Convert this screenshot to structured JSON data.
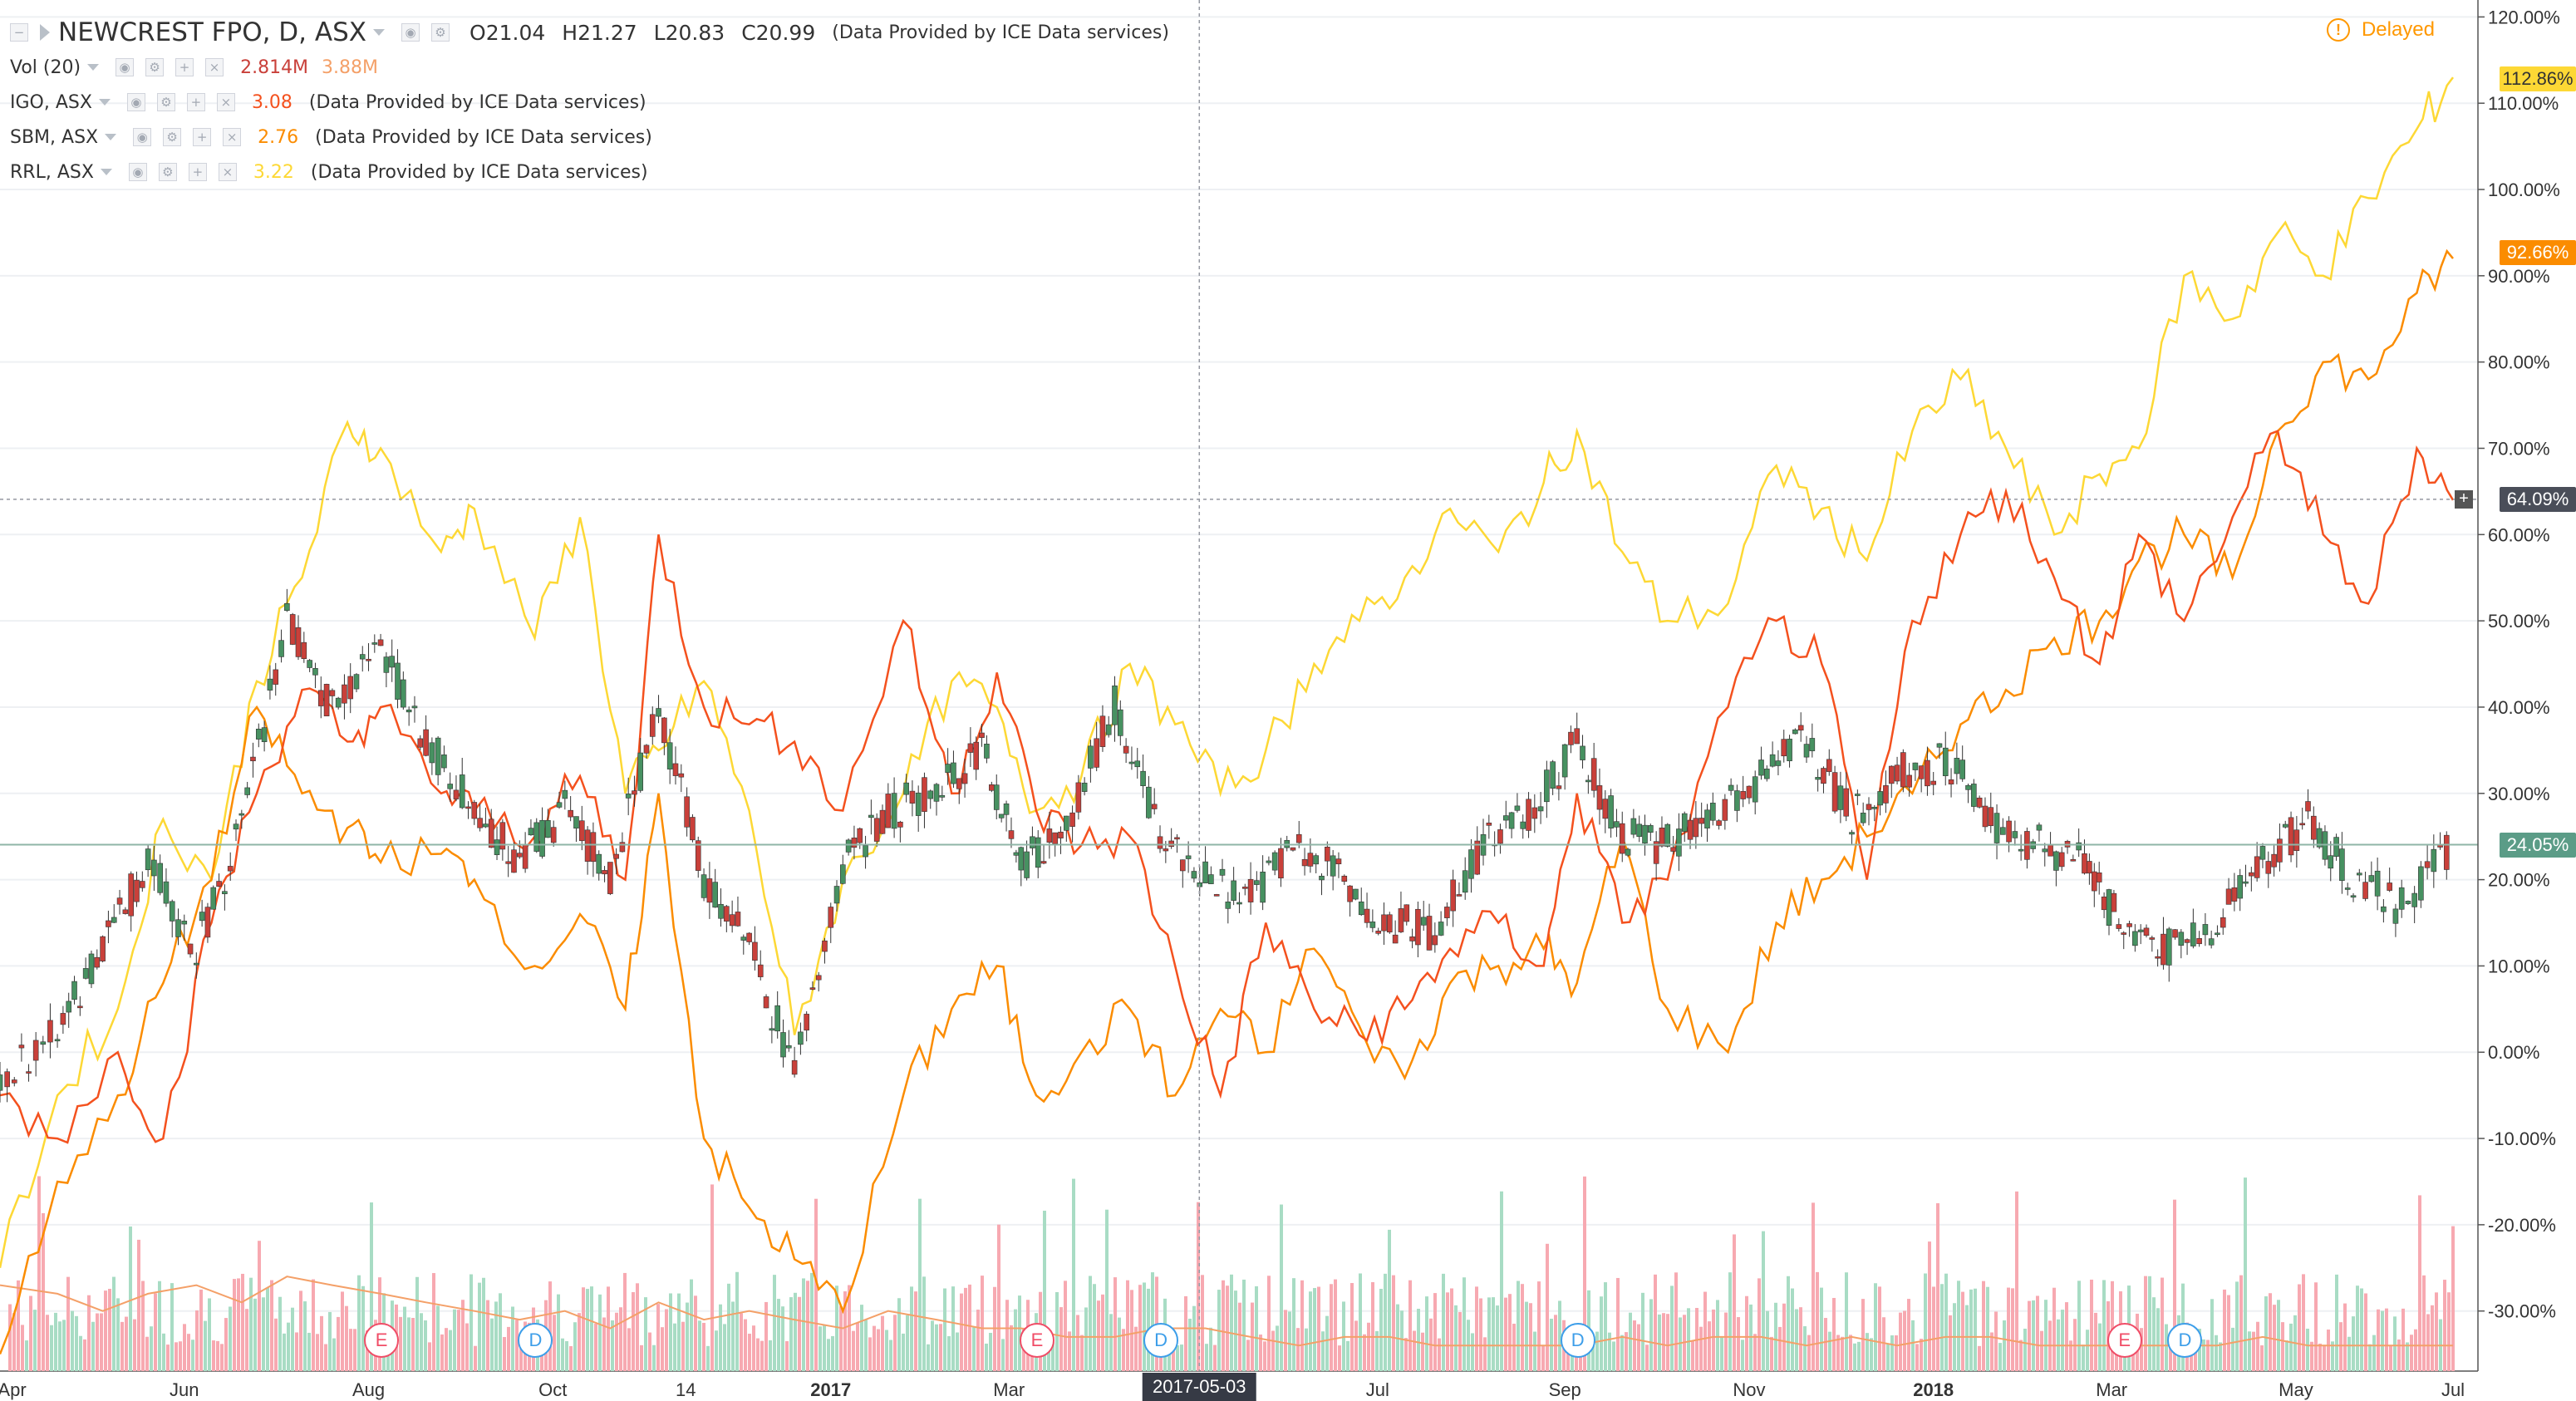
{
  "legend": {
    "symbol": "NEWCREST FPO, D, ASX",
    "open_label": "O",
    "open": "21.04",
    "high_label": "H",
    "high": "21.27",
    "low_label": "L",
    "low": "20.83",
    "close_label": "C",
    "close": "20.99",
    "note": "(Data Provided by ICE Data services)",
    "vol": {
      "name": "Vol (20)",
      "value": "2.814M",
      "ma": "3.88M"
    },
    "compare": [
      {
        "name": "IGO, ASX",
        "value": "3.08",
        "note": "(Data Provided by ICE Data services)",
        "color": "#f4511e"
      },
      {
        "name": "SBM, ASX",
        "value": "2.76",
        "note": "(Data Provided by ICE Data services)",
        "color": "#fb8c00"
      },
      {
        "name": "RRL, ASX",
        "value": "3.22",
        "note": "(Data Provided by ICE Data services)",
        "color": "#fdd835"
      }
    ]
  },
  "delayed_label": "Delayed",
  "price_tags": {
    "rrl": "112.86%",
    "sbm": "92.66%",
    "crosshair": "64.09%",
    "ncm": "24.05%"
  },
  "cursor_date": "2017-05-03",
  "events": [
    "E",
    "D",
    "E",
    "D",
    "D",
    "E",
    "D"
  ],
  "colors": {
    "up": "#26a69a",
    "down": "#ef5350",
    "candle_up": "#479161",
    "candle_down": "#c9403a",
    "igo": "#f4511e",
    "sbm": "#fb8c00",
    "rrl": "#fdd835",
    "vol_up": "#a8dcc4",
    "vol_down": "#f7a9b1",
    "vol_ma": "#f4a068"
  },
  "chart_data": {
    "type": "line",
    "title": "NEWCREST FPO, D, ASX",
    "ylabel": "",
    "y_unit": "%",
    "ylim": [
      -36,
      121
    ],
    "y_ticks": [
      "120.00%",
      "110.00%",
      "100.00%",
      "90.00%",
      "80.00%",
      "70.00%",
      "60.00%",
      "50.00%",
      "40.00%",
      "30.00%",
      "20.00%",
      "10.00%",
      "0.00%",
      "-10.00%",
      "-20.00%",
      "-30.00%"
    ],
    "x_ticks": [
      "Apr",
      "Jun",
      "Aug",
      "Oct",
      "14",
      "2017",
      "Mar",
      "2017-05-03",
      "Jul",
      "Sep",
      "Nov",
      "2018",
      "Mar",
      "May",
      "Jul"
    ],
    "x_bold_ticks": [
      "2017",
      "2018"
    ],
    "x_range": [
      "2016-04-01",
      "2018-06-22"
    ],
    "series": [
      {
        "name": "RRL, ASX",
        "type": "line",
        "x": [
          "2016-04-01",
          "2016-04-20",
          "2016-05-10",
          "2016-05-25",
          "2016-06-10",
          "2016-06-25",
          "2016-07-10",
          "2016-07-25",
          "2016-08-05",
          "2016-08-25",
          "2016-09-05",
          "2016-09-25",
          "2016-10-10",
          "2016-10-25",
          "2016-11-05",
          "2016-11-20",
          "2016-12-05",
          "2016-12-20",
          "2017-01-05",
          "2017-01-25",
          "2017-02-10",
          "2017-02-25",
          "2017-03-10",
          "2017-03-25",
          "2017-04-10",
          "2017-04-25",
          "2017-05-10",
          "2017-05-25",
          "2017-06-10",
          "2017-06-25",
          "2017-07-10",
          "2017-07-25",
          "2017-08-10",
          "2017-08-25",
          "2017-09-05",
          "2017-09-20",
          "2017-10-05",
          "2017-10-25",
          "2017-11-10",
          "2017-11-25",
          "2017-12-10",
          "2017-12-25",
          "2018-01-10",
          "2018-01-25",
          "2018-02-10",
          "2018-02-25",
          "2018-03-10",
          "2018-03-25",
          "2018-04-10",
          "2018-04-25",
          "2018-05-10",
          "2018-05-25",
          "2018-06-10",
          "2018-06-22"
        ],
        "y": [
          -25,
          -5,
          5,
          27,
          20,
          43,
          55,
          73,
          70,
          58,
          63,
          48,
          62,
          30,
          35,
          43,
          28,
          2,
          20,
          30,
          43,
          40,
          28,
          32,
          45,
          38,
          30,
          35,
          45,
          50,
          55,
          63,
          58,
          66,
          72,
          58,
          50,
          52,
          68,
          63,
          57,
          72,
          78,
          70,
          60,
          67,
          70,
          90,
          85,
          95,
          90,
          99,
          107,
          113
        ]
      },
      {
        "name": "SBM, ASX",
        "type": "line",
        "x": [
          "2016-04-01",
          "2016-04-20",
          "2016-05-10",
          "2016-05-25",
          "2016-06-10",
          "2016-06-25",
          "2016-07-10",
          "2016-07-25",
          "2016-08-05",
          "2016-08-25",
          "2016-09-05",
          "2016-09-25",
          "2016-10-10",
          "2016-10-25",
          "2016-11-05",
          "2016-11-20",
          "2016-12-05",
          "2016-12-20",
          "2017-01-05",
          "2017-01-25",
          "2017-02-10",
          "2017-02-25",
          "2017-03-10",
          "2017-03-25",
          "2017-04-10",
          "2017-04-25",
          "2017-05-10",
          "2017-05-25",
          "2017-06-10",
          "2017-06-25",
          "2017-07-10",
          "2017-07-25",
          "2017-08-10",
          "2017-08-25",
          "2017-09-05",
          "2017-09-20",
          "2017-10-05",
          "2017-10-25",
          "2017-11-10",
          "2017-11-25",
          "2017-12-10",
          "2017-12-25",
          "2018-01-10",
          "2018-01-25",
          "2018-02-10",
          "2018-02-25",
          "2018-03-10",
          "2018-03-25",
          "2018-04-10",
          "2018-04-25",
          "2018-05-10",
          "2018-05-25",
          "2018-06-10",
          "2018-06-22"
        ],
        "y": [
          -35,
          -15,
          -5,
          8,
          20,
          40,
          30,
          26,
          22,
          23,
          20,
          10,
          16,
          5,
          30,
          -10,
          -18,
          -24,
          -30,
          -5,
          5,
          10,
          -5,
          0,
          5,
          -5,
          5,
          0,
          12,
          3,
          -3,
          8,
          10,
          12,
          8,
          25,
          5,
          0,
          15,
          20,
          25,
          30,
          38,
          42,
          48,
          50,
          57,
          60,
          55,
          72,
          80,
          78,
          88,
          92
        ]
      },
      {
        "name": "IGO, ASX",
        "type": "line",
        "x": [
          "2016-04-01",
          "2016-04-20",
          "2016-05-10",
          "2016-05-25",
          "2016-06-10",
          "2016-06-25",
          "2016-07-10",
          "2016-07-25",
          "2016-08-05",
          "2016-08-25",
          "2016-09-05",
          "2016-09-25",
          "2016-10-10",
          "2016-10-25",
          "2016-11-05",
          "2016-11-20",
          "2016-12-05",
          "2016-12-20",
          "2017-01-05",
          "2017-01-25",
          "2017-02-10",
          "2017-02-25",
          "2017-03-10",
          "2017-03-25",
          "2017-04-10",
          "2017-04-25",
          "2017-05-10",
          "2017-05-25",
          "2017-06-10",
          "2017-06-25",
          "2017-07-10",
          "2017-07-25",
          "2017-08-10",
          "2017-08-25",
          "2017-09-05",
          "2017-09-20",
          "2017-10-05",
          "2017-10-25",
          "2017-11-10",
          "2017-11-25",
          "2017-12-10",
          "2017-12-25",
          "2018-01-10",
          "2018-01-25",
          "2018-02-10",
          "2018-02-25",
          "2018-03-10",
          "2018-03-25",
          "2018-04-10",
          "2018-04-25",
          "2018-05-10",
          "2018-05-25",
          "2018-06-10",
          "2018-06-22"
        ],
        "y": [
          -5,
          -10,
          0,
          -10,
          15,
          30,
          42,
          36,
          40,
          30,
          28,
          25,
          32,
          20,
          60,
          40,
          38,
          36,
          28,
          50,
          30,
          44,
          28,
          24,
          25,
          10,
          -5,
          15,
          5,
          2,
          5,
          12,
          15,
          10,
          30,
          15,
          20,
          40,
          50,
          45,
          20,
          50,
          60,
          65,
          55,
          45,
          60,
          50,
          62,
          72,
          60,
          52,
          70,
          64
        ]
      }
    ],
    "candles": {
      "name": "NEWCREST FPO, D, ASX",
      "y_unit": "%",
      "x": [
        "2016-04-01",
        "2016-04-20",
        "2016-05-05",
        "2016-05-20",
        "2016-06-05",
        "2016-06-20",
        "2016-07-05",
        "2016-07-20",
        "2016-08-05",
        "2016-08-20",
        "2016-09-05",
        "2016-09-20",
        "2016-10-05",
        "2016-10-20",
        "2016-11-05",
        "2016-11-20",
        "2016-12-05",
        "2016-12-20",
        "2017-01-05",
        "2017-01-20",
        "2017-02-05",
        "2017-02-20",
        "2017-03-05",
        "2017-03-20",
        "2017-04-05",
        "2017-04-20",
        "2017-05-05",
        "2017-05-20",
        "2017-06-05",
        "2017-06-20",
        "2017-07-05",
        "2017-07-20",
        "2017-08-05",
        "2017-08-20",
        "2017-09-05",
        "2017-09-20",
        "2017-10-05",
        "2017-10-20",
        "2017-11-05",
        "2017-11-20",
        "2017-12-05",
        "2017-12-20",
        "2018-01-05",
        "2018-01-20",
        "2018-02-05",
        "2018-02-20",
        "2018-03-05",
        "2018-03-20",
        "2018-04-05",
        "2018-04-20",
        "2018-05-05",
        "2018-05-20",
        "2018-06-05",
        "2018-06-22"
      ],
      "close": [
        -3,
        3,
        12,
        22,
        12,
        26,
        50,
        40,
        47,
        36,
        28,
        22,
        28,
        20,
        40,
        20,
        12,
        -2,
        22,
        28,
        30,
        35,
        22,
        26,
        40,
        25,
        20,
        18,
        24,
        20,
        15,
        14,
        24,
        28,
        36,
        25,
        24,
        28,
        32,
        36,
        27,
        32,
        34,
        27,
        24,
        22,
        14,
        12,
        15,
        22,
        27,
        20,
        17,
        24
      ]
    },
    "volume_ma": [
      -27,
      -28,
      -30,
      -28,
      -27,
      -29,
      -26,
      -27,
      -28,
      -29,
      -30,
      -31,
      -30,
      -32,
      -29,
      -31,
      -30,
      -31,
      -32,
      -30,
      -31,
      -32,
      -32,
      -33,
      -33,
      -32,
      -32,
      -33,
      -34,
      -33,
      -33,
      -34,
      -34,
      -34,
      -34,
      -33,
      -34,
      -33,
      -33,
      -34,
      -33,
      -34,
      -33,
      -33,
      -34,
      -34,
      -34,
      -34,
      -34,
      -33,
      -34,
      -34,
      -34,
      -34
    ]
  }
}
